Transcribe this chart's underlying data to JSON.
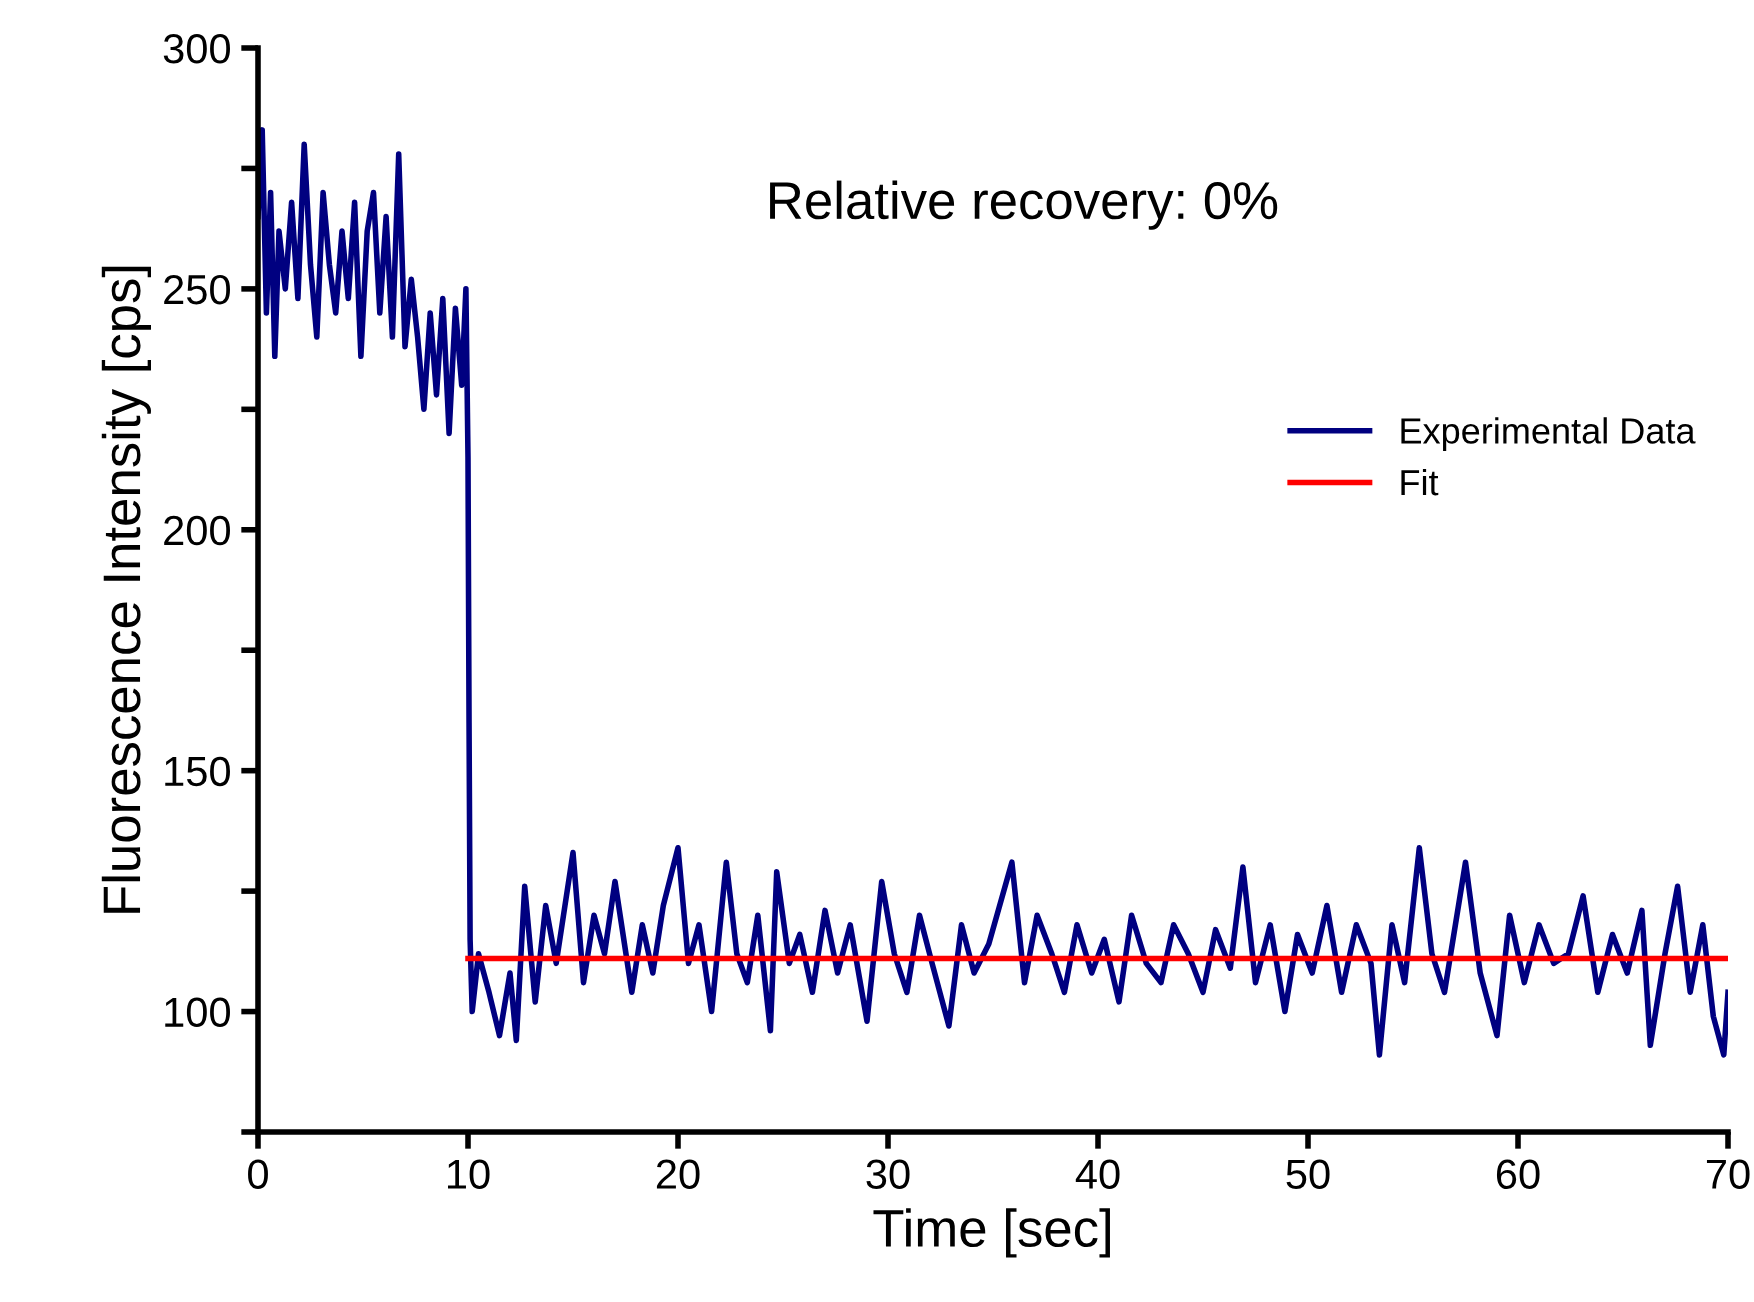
{
  "chart_data": {
    "type": "line",
    "xlabel": "Time [sec]",
    "ylabel": "Fluorescence Intensity [cps]",
    "xlim": [
      0,
      70
    ],
    "ylim": [
      75,
      300
    ],
    "xticks": [
      0,
      10,
      20,
      30,
      40,
      50,
      60,
      70
    ],
    "yticks": [
      {
        "value": 75,
        "label": null
      },
      100,
      {
        "value": 125,
        "label": null
      },
      150,
      {
        "value": 175,
        "label": null
      },
      200,
      {
        "value": 225,
        "label": null
      },
      250,
      {
        "value": 275,
        "label": null
      },
      300
    ],
    "legend": "right",
    "grid": false,
    "annotations": [
      {
        "text": "Relative recovery: 0%"
      }
    ],
    "series": [
      {
        "name": "Experimental Data",
        "color": "#000080",
        "x": [
          0,
          0.2,
          0.4,
          0.6,
          0.8,
          1.0,
          1.3,
          1.6,
          1.9,
          2.2,
          2.5,
          2.8,
          3.1,
          3.4,
          3.7,
          4.0,
          4.3,
          4.6,
          4.9,
          5.2,
          5.5,
          5.8,
          6.1,
          6.4,
          6.7,
          7.0,
          7.3,
          7.6,
          7.9,
          8.2,
          8.5,
          8.8,
          9.1,
          9.4,
          9.7,
          9.9,
          10.0,
          10.05,
          10.1,
          10.2,
          10.5,
          11.0,
          11.5,
          12.0,
          12.3,
          12.7,
          13.2,
          13.7,
          14.2,
          15.0,
          15.5,
          16.0,
          16.5,
          17.0,
          17.8,
          18.3,
          18.8,
          19.3,
          20.0,
          20.5,
          21.0,
          21.6,
          22.3,
          22.8,
          23.3,
          23.8,
          24.4,
          24.7,
          25.3,
          25.8,
          26.4,
          27.0,
          27.6,
          28.2,
          29.0,
          29.7,
          30.3,
          30.9,
          31.5,
          32.1,
          32.9,
          33.5,
          34.1,
          34.8,
          35.9,
          36.5,
          37.1,
          37.8,
          38.4,
          39.0,
          39.7,
          40.3,
          41.0,
          41.6,
          42.3,
          43.0,
          43.6,
          44.3,
          45.0,
          45.6,
          46.3,
          46.9,
          47.5,
          48.2,
          48.9,
          49.5,
          50.2,
          50.9,
          51.6,
          52.3,
          53.0,
          53.4,
          54.0,
          54.6,
          55.3,
          55.9,
          56.5,
          57.5,
          58.2,
          59.0,
          59.6,
          60.3,
          61.0,
          61.7,
          62.4,
          63.1,
          63.8,
          64.5,
          65.2,
          65.9,
          66.3,
          67.0,
          67.6,
          68.2,
          68.8,
          69.3,
          69.8,
          70.0
        ],
        "values": [
          265,
          283,
          245,
          270,
          236,
          262,
          250,
          268,
          248,
          280,
          255,
          240,
          270,
          255,
          245,
          262,
          248,
          268,
          236,
          262,
          270,
          245,
          265,
          240,
          278,
          238,
          252,
          240,
          225,
          245,
          228,
          248,
          220,
          246,
          230,
          250,
          215,
          160,
          115,
          100,
          112,
          104,
          95,
          108,
          94,
          126,
          102,
          122,
          110,
          133,
          106,
          120,
          112,
          127,
          104,
          118,
          108,
          122,
          134,
          110,
          118,
          100,
          131,
          112,
          106,
          120,
          96,
          129,
          110,
          116,
          104,
          121,
          108,
          118,
          98,
          127,
          112,
          104,
          120,
          110,
          97,
          118,
          108,
          114,
          131,
          106,
          120,
          112,
          104,
          118,
          108,
          115,
          102,
          120,
          110,
          106,
          118,
          112,
          104,
          117,
          109,
          130,
          106,
          118,
          100,
          116,
          108,
          122,
          104,
          118,
          110,
          91,
          118,
          106,
          134,
          112,
          104,
          131,
          108,
          95,
          120,
          106,
          118,
          110,
          112,
          124,
          104,
          116,
          108,
          121,
          93,
          112,
          126,
          104,
          118,
          99,
          91,
          104
        ]
      },
      {
        "name": "Fit",
        "color": "#ff0000",
        "x": [
          10,
          70
        ],
        "values": [
          111,
          111
        ]
      }
    ]
  }
}
